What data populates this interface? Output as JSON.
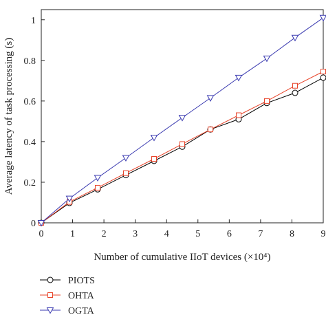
{
  "chart_data": {
    "type": "line",
    "xlabel": "Number of cumulative IIoT devices (×10⁴)",
    "ylabel": "Average latency of task processing (s)",
    "xlim": [
      0,
      9
    ],
    "ylim": [
      0,
      1.05
    ],
    "x_ticks": [
      "0",
      "1",
      "2",
      "3",
      "4",
      "5",
      "6",
      "7",
      "8",
      "9"
    ],
    "y_ticks": [
      "0",
      "0.2",
      "0.4",
      "0.6",
      "0.8",
      "1"
    ],
    "grid": false,
    "legend_position": "below-left",
    "series": [
      {
        "name": "PIOTS",
        "marker": "circle",
        "color": "#000000",
        "x": [
          0,
          0.9,
          1.8,
          2.7,
          3.6,
          4.5,
          5.4,
          6.3,
          7.2,
          8.1,
          9.0
        ],
        "y": [
          0,
          0.098,
          0.165,
          0.235,
          0.305,
          0.375,
          0.46,
          0.51,
          0.59,
          0.64,
          0.715
        ]
      },
      {
        "name": "OHTA",
        "marker": "square",
        "color": "#e8442a",
        "x": [
          0,
          0.9,
          1.8,
          2.7,
          3.6,
          4.5,
          5.4,
          6.3,
          7.2,
          8.1,
          9.0
        ],
        "y": [
          0,
          0.103,
          0.173,
          0.245,
          0.315,
          0.388,
          0.46,
          0.53,
          0.6,
          0.675,
          0.745
        ]
      },
      {
        "name": "OGTA",
        "marker": "triangle-down",
        "color": "#3a3ab0",
        "x": [
          0,
          0.9,
          1.8,
          2.7,
          3.6,
          4.5,
          5.4,
          6.3,
          7.2,
          8.1,
          9.0
        ],
        "y": [
          0,
          0.12,
          0.222,
          0.32,
          0.42,
          0.518,
          0.615,
          0.715,
          0.81,
          0.912,
          1.01
        ]
      }
    ]
  }
}
